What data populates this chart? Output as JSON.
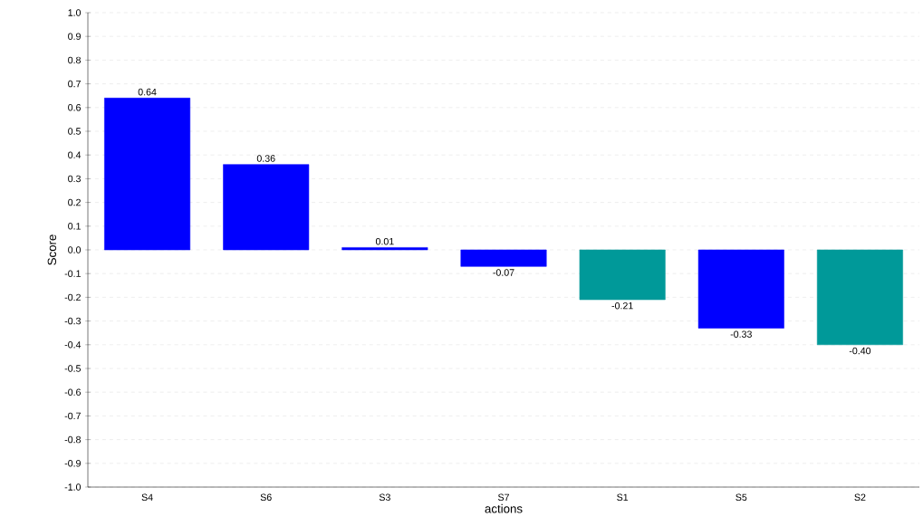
{
  "chart_data": {
    "type": "bar",
    "xlabel": "actions",
    "ylabel": "Score",
    "categories": [
      "S4",
      "S6",
      "S3",
      "S7",
      "S1",
      "S5",
      "S2"
    ],
    "values": [
      0.64,
      0.36,
      0.01,
      -0.07,
      -0.21,
      -0.33,
      -0.4
    ],
    "colors": [
      "#0000ff",
      "#0000ff",
      "#0000ff",
      "#0000ff",
      "#009999",
      "#0000ff",
      "#009999"
    ],
    "value_labels": [
      "0.64",
      "0.36",
      "0.01",
      "-0.07",
      "-0.21",
      "-0.33",
      "-0.40"
    ],
    "ylim": [
      -1.0,
      1.0
    ],
    "yticks": [
      {
        "value": -1.0,
        "label": "-1.0"
      },
      {
        "value": -0.9,
        "label": "-0.9"
      },
      {
        "value": -0.8,
        "label": "-0.8"
      },
      {
        "value": -0.7,
        "label": "-0.7"
      },
      {
        "value": -0.6,
        "label": "-0.6"
      },
      {
        "value": -0.5,
        "label": "-0.5"
      },
      {
        "value": -0.4,
        "label": "-0.4"
      },
      {
        "value": -0.3,
        "label": "-0.3"
      },
      {
        "value": -0.2,
        "label": "-0.2"
      },
      {
        "value": -0.1,
        "label": "-0.1"
      },
      {
        "value": 0.0,
        "label": "0.0"
      },
      {
        "value": 0.1,
        "label": "0.1"
      },
      {
        "value": 0.2,
        "label": "0.2"
      },
      {
        "value": 0.3,
        "label": "0.3"
      },
      {
        "value": 0.4,
        "label": "0.4"
      },
      {
        "value": 0.5,
        "label": "0.5"
      },
      {
        "value": 0.6,
        "label": "0.6"
      },
      {
        "value": 0.7,
        "label": "0.7"
      },
      {
        "value": 0.8,
        "label": "0.8"
      },
      {
        "value": 0.9,
        "label": "0.9"
      },
      {
        "value": 1.0,
        "label": "1.0"
      }
    ],
    "grid": "y"
  }
}
